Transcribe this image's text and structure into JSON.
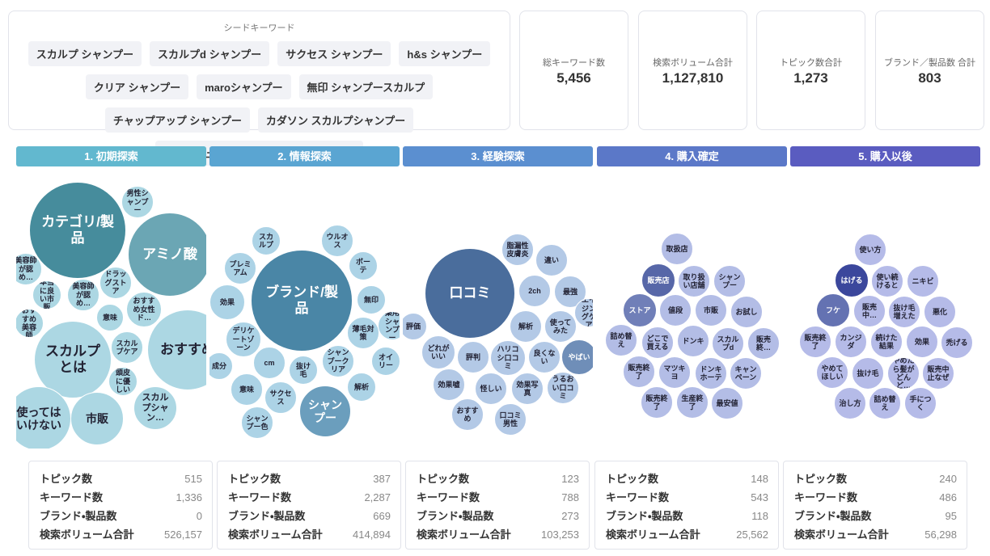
{
  "seed": {
    "title": "シードキーワード",
    "keywords": [
      "スカルプ シャンプー",
      "スカルプd シャンプー",
      "サクセス シャンプー",
      "h&s シャンプー",
      "クリア シャンプー",
      "maroシャンプー",
      "無印 シャンプースカルプ",
      "チャップアップ シャンプー",
      "カダソン スカルプシャンプー",
      "コラージュフルフル スカルプシャンプー"
    ]
  },
  "stats": [
    {
      "label": "総キーワード数",
      "value": "5,456"
    },
    {
      "label": "検索ボリューム合計",
      "value": "1,127,810"
    },
    {
      "label": "トピック数合計",
      "value": "1,273"
    },
    {
      "label": "ブランド／製品数 合計",
      "value": "803"
    }
  ],
  "stages": [
    {
      "header": "1. 初期探索",
      "bubbles": [
        "カテゴリ/製品",
        "男性シャンプー",
        "アミノ酸",
        "美容師が認め…",
        "ドラッグストア",
        "本当に良い市販",
        "美容師が認め…",
        "おすすめ女性ド…",
        "意味",
        "おすすめ美容師",
        "スカルプとは",
        "スカルプケア",
        "おすすめ",
        "頭皮に優しい",
        "使ってはいけない",
        "市販",
        "スカルプシャン…"
      ],
      "stats": [
        {
          "label": "トピック数",
          "value": "515"
        },
        {
          "label": "キーワード数",
          "value": "1,336"
        },
        {
          "label": "ブランド・製品数",
          "value": "0"
        },
        {
          "label": "検索ボリューム合計",
          "value": "526,157"
        }
      ]
    },
    {
      "header": "2. 情報探索",
      "bubbles": [
        "スカルプ",
        "ウルオス",
        "プレミアム",
        "ボーテ",
        "ブランド/製品",
        "効果",
        "無印",
        "薬用シャンプー",
        "薄毛対策",
        "デリケートゾーン",
        "cm",
        "抜け毛",
        "シャンプークリア",
        "オイリー",
        "成分",
        "意味",
        "サクセス",
        "シャンプー",
        "解析",
        "シャンプー色"
      ],
      "stats": [
        {
          "label": "トピック数",
          "value": "387"
        },
        {
          "label": "キーワード数",
          "value": "2,287"
        },
        {
          "label": "ブランド・製品数",
          "value": "669"
        },
        {
          "label": "検索ボリューム合計",
          "value": "414,894"
        }
      ]
    },
    {
      "header": "3. 経験探索",
      "bubbles": [
        "脂漏性皮膚炎",
        "違い",
        "口コミ",
        "2ch",
        "最強",
        "評価",
        "解析",
        "使ってみた",
        "エイジングケア",
        "どれがいい",
        "評判",
        "ハリコシ口コミ",
        "良くない",
        "やばい",
        "効果嘘",
        "怪しい",
        "効果写真",
        "うるおい口コミ",
        "おすすめ",
        "口コミ男性"
      ],
      "stats": [
        {
          "label": "トピック数",
          "value": "123"
        },
        {
          "label": "キーワード数",
          "value": "788"
        },
        {
          "label": "ブランド・製品数",
          "value": "273"
        },
        {
          "label": "検索ボリューム合計",
          "value": "103,253"
        }
      ]
    },
    {
      "header": "4. 購入確定",
      "bubbles": [
        "取扱店",
        "販売店",
        "取り扱い店舗",
        "シャンプー",
        "ストア",
        "値段",
        "市販",
        "お試し",
        "詰め替え",
        "どこで買える",
        "ドンキ",
        "スカルプd",
        "販売終…",
        "販売終了",
        "マツキヨ",
        "ドンキホーテ",
        "キャンペーン",
        "販売終了",
        "生産終了",
        "最安値"
      ],
      "stats": [
        {
          "label": "トピック数",
          "value": "148"
        },
        {
          "label": "キーワード数",
          "value": "543"
        },
        {
          "label": "ブランド・製品数",
          "value": "118"
        },
        {
          "label": "検索ボリューム合計",
          "value": "25,562"
        }
      ]
    },
    {
      "header": "5. 購入以後",
      "bubbles": [
        "使い方",
        "はげる",
        "使い続けると",
        "ニキビ",
        "フケ",
        "販売中…",
        "抜け毛増えた",
        "悪化",
        "販売終了",
        "カンジダ",
        "続けた結果",
        "効果",
        "禿げる",
        "やめてほしい",
        "抜け毛",
        "やめたら髪がどんど…",
        "販売中止なぜ",
        "治し方",
        "詰め替え",
        "手につく"
      ],
      "stats": [
        {
          "label": "トピック数",
          "value": "240"
        },
        {
          "label": "キーワード数",
          "value": "486"
        },
        {
          "label": "ブランド・製品数",
          "value": "95"
        },
        {
          "label": "検索ボリューム合計",
          "value": "56,298"
        }
      ]
    }
  ]
}
